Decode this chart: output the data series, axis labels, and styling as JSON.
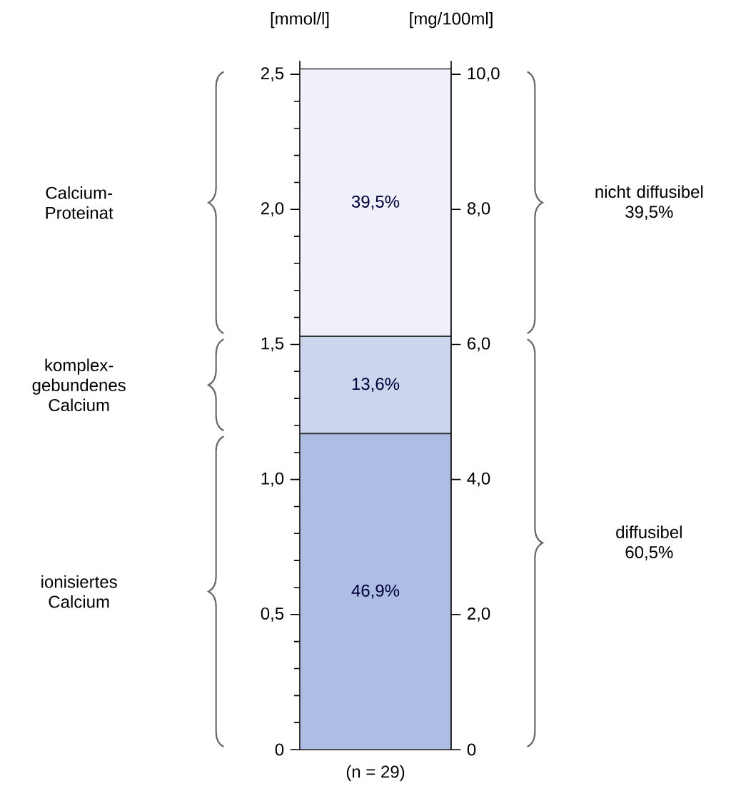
{
  "chart_data": {
    "type": "bar",
    "stacked": true,
    "categories": [
      "(n = 29)"
    ],
    "ylabel": "[mmol/l]",
    "y2label": "[mg/100ml]",
    "ylim": [
      0,
      2.55
    ],
    "yticks": [
      0,
      {
        "value": 0.5,
        "label": "0,5"
      },
      {
        "value": 1.0,
        "label": "1,0"
      },
      {
        "value": 1.5,
        "label": "1,5"
      },
      {
        "value": 2.0,
        "label": "2,0"
      },
      {
        "value": 2.5,
        "label": "2,5"
      }
    ],
    "y2lim": [
      0,
      10.2
    ],
    "y2ticks": [
      0,
      {
        "value": 2,
        "label": "2,0"
      },
      {
        "value": 4,
        "label": "4,0"
      },
      {
        "value": 6,
        "label": "6,0"
      },
      {
        "value": 8,
        "label": "8,0"
      },
      {
        "value": 10,
        "label": "10,0"
      }
    ],
    "series": [
      {
        "color": "#aebde3",
        "values": [
          1.17
        ]
      },
      {
        "color": "#cbd6ee",
        "values": [
          0.36
        ]
      },
      {
        "color": "#eff0fa",
        "values": [
          0.99
        ]
      }
    ],
    "annotations": [
      "nicht diffusibel 39,5%",
      "diffusibel 60,5%",
      "46,9%",
      "13,6%",
      "39,5%",
      "ionisiertes Calcium",
      "komplex-gebundenes Calcium",
      "Calcium-Proteinat"
    ],
    "grid": false
  }
}
